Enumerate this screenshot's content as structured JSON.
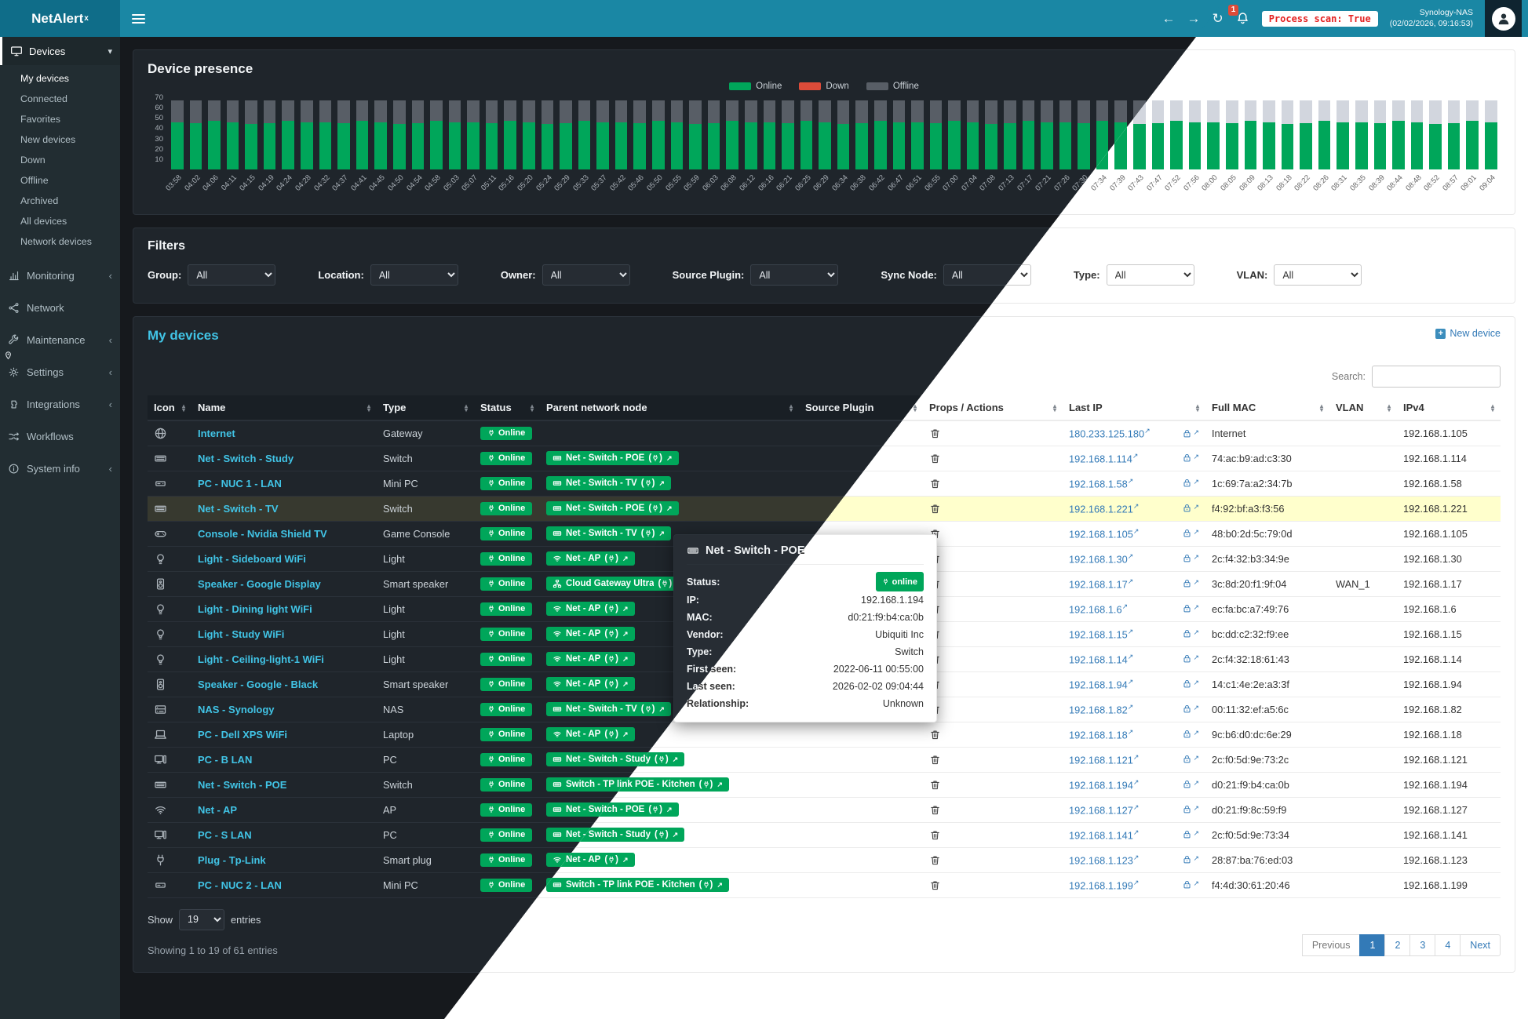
{
  "navbar": {
    "brand": "NetAlert",
    "brand_sup": "x",
    "back_icon": "←",
    "forward_icon": "→",
    "refresh_icon": "↻",
    "badge": "1",
    "process_scan": "Process scan: True",
    "host": "Synology-NAS",
    "time": "(02/02/2026, 09:16:53)"
  },
  "sidebar": {
    "devices_menu": {
      "icon": "display",
      "label": "Devices",
      "chevron": "▾",
      "children": [
        {
          "label": "My devices",
          "state": "active"
        },
        {
          "label": "Connected"
        },
        {
          "label": "Favorites"
        },
        {
          "label": "New devices"
        },
        {
          "label": "Down"
        },
        {
          "label": "Offline"
        },
        {
          "label": "Archived"
        },
        {
          "label": "All devices"
        },
        {
          "label": "Network devices"
        }
      ]
    },
    "sections": [
      {
        "icon": "chart",
        "label": "Monitoring",
        "chevron": "‹"
      },
      {
        "icon": "share",
        "label": "Network",
        "chevron": ""
      },
      {
        "icon": "wrench",
        "label": "Maintenance",
        "chevron": "‹"
      },
      {
        "icon": "gear",
        "label": "Settings",
        "chevron": "‹"
      },
      {
        "icon": "puzzle",
        "label": "Integrations",
        "chevron": "‹"
      },
      {
        "icon": "shuffle",
        "label": "Workflows",
        "chevron": ""
      },
      {
        "icon": "info",
        "label": "System info",
        "chevron": "‹"
      }
    ]
  },
  "chart_data": {
    "type": "bar",
    "stacked": true,
    "title": "Device presence",
    "legend": [
      {
        "label": "Online",
        "state": "online",
        "color": "#00a65a"
      },
      {
        "label": "Down",
        "state": "down",
        "color": "#dd4b39"
      },
      {
        "label": "Offline",
        "state": "offline",
        "color": "#d2d6de"
      }
    ],
    "ylim": [
      0,
      70
    ],
    "yticks": [
      70,
      60,
      50,
      40,
      30,
      20,
      10
    ],
    "x": [
      "03:58",
      "04:02",
      "04:06",
      "04:11",
      "04:15",
      "04:19",
      "04:24",
      "04:28",
      "04:32",
      "04:37",
      "04:41",
      "04:45",
      "04:50",
      "04:54",
      "04:58",
      "05:03",
      "05:07",
      "05:11",
      "05:16",
      "05:20",
      "05:24",
      "05:29",
      "05:33",
      "05:37",
      "05:42",
      "05:46",
      "05:50",
      "05:55",
      "05:59",
      "06:03",
      "06:08",
      "06:12",
      "06:16",
      "06:21",
      "06:25",
      "06:29",
      "06:34",
      "06:38",
      "06:42",
      "06:47",
      "06:51",
      "06:55",
      "07:00",
      "07:04",
      "07:08",
      "07:13",
      "07:17",
      "07:21",
      "07:26",
      "07:30",
      "07:34",
      "07:39",
      "07:43",
      "07:47",
      "07:52",
      "07:56",
      "08:00",
      "08:05",
      "08:09",
      "08:13",
      "08:18",
      "08:22",
      "08:26",
      "08:31",
      "08:35",
      "08:39",
      "08:44",
      "08:48",
      "08:52",
      "08:57",
      "09:01",
      "09:04"
    ],
    "series": [
      {
        "name": "Online",
        "color": "#00a65a",
        "values": [
          46,
          45,
          47,
          46,
          44,
          45,
          47,
          46,
          46,
          45,
          47,
          46,
          44,
          45,
          47,
          46,
          46,
          45,
          47,
          46,
          44,
          45,
          47,
          46,
          46,
          45,
          47,
          46,
          44,
          45,
          47,
          46,
          46,
          45,
          47,
          46,
          44,
          45,
          47,
          46,
          46,
          45,
          47,
          46,
          44,
          45,
          47,
          46,
          46,
          45,
          47,
          46,
          44,
          45,
          47,
          46,
          46,
          45,
          47,
          46,
          44,
          45,
          47,
          46,
          46,
          45,
          47,
          46,
          44,
          45,
          47,
          46
        ]
      },
      {
        "name": "Down",
        "color": "#dd4b39",
        "values": [
          0,
          0,
          0,
          0,
          0,
          0,
          0,
          0,
          0,
          0,
          0,
          0,
          0,
          0,
          0,
          0,
          0,
          0,
          0,
          0,
          0,
          0,
          0,
          0,
          0,
          0,
          0,
          0,
          0,
          0,
          0,
          0,
          0,
          0,
          0,
          0,
          0,
          0,
          0,
          0,
          0,
          0,
          0,
          0,
          0,
          0,
          0,
          0,
          0,
          0,
          0,
          0,
          0,
          0,
          0,
          0,
          0,
          0,
          0,
          0,
          0,
          0,
          0,
          0,
          0,
          0,
          0,
          0,
          0,
          0,
          0,
          0
        ]
      },
      {
        "name": "Offline",
        "color": "#d2d6de",
        "values": [
          21,
          22,
          20,
          21,
          23,
          22,
          20,
          21,
          21,
          22,
          20,
          21,
          23,
          22,
          20,
          21,
          21,
          22,
          20,
          21,
          23,
          22,
          20,
          21,
          21,
          22,
          20,
          21,
          23,
          22,
          20,
          21,
          21,
          22,
          20,
          21,
          23,
          22,
          20,
          21,
          21,
          22,
          20,
          21,
          23,
          22,
          20,
          21,
          21,
          22,
          20,
          21,
          23,
          22,
          20,
          21,
          21,
          22,
          20,
          21,
          23,
          22,
          20,
          21,
          21,
          22,
          20,
          21,
          23,
          22,
          20,
          21
        ]
      }
    ]
  },
  "filters": {
    "title": "Filters",
    "fields": [
      {
        "label": "Group:",
        "value": "All"
      },
      {
        "label": "Location:",
        "value": "All"
      },
      {
        "label": "Owner:",
        "value": "All"
      },
      {
        "label": "Source Plugin:",
        "value": "All"
      },
      {
        "label": "Sync Node:",
        "value": "All"
      },
      {
        "label": "Type:",
        "value": "All"
      },
      {
        "label": "VLAN:",
        "value": "All"
      }
    ]
  },
  "devices_panel": {
    "title": "My devices",
    "new_device": "New device",
    "plus_glyph": "+",
    "search_label": "Search:",
    "show_label": "Show",
    "show_value": "19",
    "entries_label": "entries",
    "summary": "Showing 1 to 19 of 61 entries"
  },
  "table": {
    "columns": [
      "Icon",
      "Name",
      "Type",
      "Status",
      "Parent network node",
      "Source Plugin",
      "Props / Actions",
      "Last IP",
      "Full MAC",
      "VLAN",
      "IPv4"
    ],
    "rows": [
      {
        "icon": "globe",
        "name": "Internet",
        "type": "Gateway",
        "status": "Online",
        "parent": null,
        "source_plugin": "",
        "last_ip": "180.233.125.180",
        "mac": "Internet",
        "vlan": "",
        "ipv4": "192.168.1.105"
      },
      {
        "icon": "switch",
        "name": "Net - Switch - Study",
        "type": "Switch",
        "status": "Online",
        "parent": {
          "icon": "switch",
          "label": "Net - Switch - POE"
        },
        "source_plugin": "",
        "last_ip": "192.168.1.114",
        "mac": "74:ac:b9:ad:c3:30",
        "vlan": "",
        "ipv4": "192.168.1.114"
      },
      {
        "icon": "minipc",
        "name": "PC - NUC 1 - LAN",
        "type": "Mini PC",
        "status": "Online",
        "parent": {
          "icon": "switch",
          "label": "Net - Switch - TV"
        },
        "source_plugin": "",
        "last_ip": "192.168.1.58",
        "mac": "1c:69:7a:a2:34:7b",
        "vlan": "",
        "ipv4": "192.168.1.58"
      },
      {
        "icon": "switch",
        "name": "Net - Switch - TV",
        "type": "Switch",
        "status": "Online",
        "parent": {
          "icon": "switch",
          "label": "Net - Switch - POE"
        },
        "source_plugin": "",
        "last_ip": "192.168.1.221",
        "mac": "f4:92:bf:a3:f3:56",
        "vlan": "",
        "ipv4": "192.168.1.221",
        "state": "selected"
      },
      {
        "icon": "console",
        "name": "Console - Nvidia Shield TV",
        "type": "Game Console",
        "status": "Online",
        "parent": {
          "icon": "switch",
          "label": "Net - Switch - TV"
        },
        "source_plugin": "",
        "last_ip": "192.168.1.105",
        "mac": "48:b0:2d:5c:79:0d",
        "vlan": "",
        "ipv4": "192.168.1.105"
      },
      {
        "icon": "bulb",
        "name": "Light - Sideboard WiFi",
        "type": "Light",
        "status": "Online",
        "parent": {
          "icon": "wifi",
          "label": "Net - AP"
        },
        "source_plugin": "",
        "last_ip": "192.168.1.30",
        "mac": "2c:f4:32:b3:34:9e",
        "vlan": "",
        "ipv4": "192.168.1.30"
      },
      {
        "icon": "speaker",
        "name": "Speaker - Google Display",
        "type": "Smart speaker",
        "status": "Online",
        "parent": {
          "icon": "sitemap",
          "label": "Cloud Gateway Ultra"
        },
        "source_plugin": "",
        "last_ip": "192.168.1.17",
        "mac": "3c:8d:20:f1:9f:04",
        "vlan": "WAN_1",
        "ipv4": "192.168.1.17"
      },
      {
        "icon": "bulb",
        "name": "Light - Dining light WiFi",
        "type": "Light",
        "status": "Online",
        "parent": {
          "icon": "wifi",
          "label": "Net - AP"
        },
        "source_plugin": "",
        "last_ip": "192.168.1.6",
        "mac": "ec:fa:bc:a7:49:76",
        "vlan": "",
        "ipv4": "192.168.1.6"
      },
      {
        "icon": "bulb",
        "name": "Light - Study WiFi",
        "type": "Light",
        "status": "Online",
        "parent": {
          "icon": "wifi",
          "label": "Net - AP"
        },
        "source_plugin": "",
        "last_ip": "192.168.1.15",
        "mac": "bc:dd:c2:32:f9:ee",
        "vlan": "",
        "ipv4": "192.168.1.15"
      },
      {
        "icon": "bulb",
        "name": "Light - Ceiling-light-1 WiFi",
        "type": "Light",
        "status": "Online",
        "parent": {
          "icon": "wifi",
          "label": "Net - AP"
        },
        "source_plugin": "",
        "last_ip": "192.168.1.14",
        "mac": "2c:f4:32:18:61:43",
        "vlan": "",
        "ipv4": "192.168.1.14"
      },
      {
        "icon": "speaker",
        "name": "Speaker - Google - Black",
        "type": "Smart speaker",
        "status": "Online",
        "parent": {
          "icon": "wifi",
          "label": "Net - AP"
        },
        "source_plugin": "",
        "last_ip": "192.168.1.94",
        "mac": "14:c1:4e:2e:a3:3f",
        "vlan": "",
        "ipv4": "192.168.1.94"
      },
      {
        "icon": "nas",
        "name": "NAS - Synology",
        "type": "NAS",
        "status": "Online",
        "parent": {
          "icon": "switch",
          "label": "Net - Switch - TV"
        },
        "source_plugin": "",
        "last_ip": "192.168.1.82",
        "mac": "00:11:32:ef:a5:6c",
        "vlan": "",
        "ipv4": "192.168.1.82"
      },
      {
        "icon": "laptop",
        "name": "PC - Dell XPS WiFi",
        "type": "Laptop",
        "status": "Online",
        "parent": {
          "icon": "wifi",
          "label": "Net - AP"
        },
        "source_plugin": "",
        "last_ip": "192.168.1.18",
        "mac": "9c:b6:d0:dc:6e:29",
        "vlan": "",
        "ipv4": "192.168.1.18"
      },
      {
        "icon": "desktop",
        "name": "PC - B LAN",
        "type": "PC",
        "status": "Online",
        "parent": {
          "icon": "switch",
          "label": "Net - Switch - Study"
        },
        "source_plugin": "",
        "last_ip": "192.168.1.121",
        "mac": "2c:f0:5d:9e:73:2c",
        "vlan": "",
        "ipv4": "192.168.1.121"
      },
      {
        "icon": "switch",
        "name": "Net - Switch - POE",
        "type": "Switch",
        "status": "Online",
        "parent": {
          "icon": "switch",
          "label": "Switch - TP link POE - Kitchen"
        },
        "source_plugin": "",
        "last_ip": "192.168.1.194",
        "mac": "d0:21:f9:b4:ca:0b",
        "vlan": "",
        "ipv4": "192.168.1.194"
      },
      {
        "icon": "wifi",
        "name": "Net - AP",
        "type": "AP",
        "status": "Online",
        "parent": {
          "icon": "switch",
          "label": "Net - Switch - POE"
        },
        "source_plugin": "",
        "last_ip": "192.168.1.127",
        "mac": "d0:21:f9:8c:59:f9",
        "vlan": "",
        "ipv4": "192.168.1.127"
      },
      {
        "icon": "desktop",
        "name": "PC - S LAN",
        "type": "PC",
        "status": "Online",
        "parent": {
          "icon": "switch",
          "label": "Net - Switch - Study"
        },
        "source_plugin": "",
        "last_ip": "192.168.1.141",
        "mac": "2c:f0:5d:9e:73:34",
        "vlan": "",
        "ipv4": "192.168.1.141"
      },
      {
        "icon": "plug",
        "name": "Plug - Tp-Link",
        "type": "Smart plug",
        "status": "Online",
        "parent": {
          "icon": "wifi",
          "label": "Net - AP"
        },
        "source_plugin": "",
        "last_ip": "192.168.1.123",
        "mac": "28:87:ba:76:ed:03",
        "vlan": "",
        "ipv4": "192.168.1.123"
      },
      {
        "icon": "minipc",
        "name": "PC - NUC 2 - LAN",
        "type": "Mini PC",
        "status": "Online",
        "parent": {
          "icon": "switch",
          "label": "Switch - TP link POE - Kitchen"
        },
        "source_plugin": "",
        "last_ip": "192.168.1.199",
        "mac": "f4:4d:30:61:20:46",
        "vlan": "",
        "ipv4": "192.168.1.199"
      }
    ]
  },
  "pagination": {
    "items": [
      {
        "label": "Previous",
        "state": "disabled"
      },
      {
        "label": "1",
        "state": "active"
      },
      {
        "label": "2"
      },
      {
        "label": "3"
      },
      {
        "label": "4"
      },
      {
        "label": "Next"
      }
    ]
  },
  "popup": {
    "icon": "switch",
    "title": "Net - Switch - POE",
    "status_label": "Status:",
    "status": "online",
    "fields": [
      {
        "label": "IP:",
        "value": "192.168.1.194"
      },
      {
        "label": "MAC:",
        "value": "d0:21:f9:b4:ca:0b"
      },
      {
        "label": "Vendor:",
        "value": "Ubiquiti Inc"
      },
      {
        "label": "Type:",
        "value": "Switch"
      },
      {
        "label": "First seen:",
        "value": "2022-06-11 00:55:00"
      },
      {
        "label": "Last seen:",
        "value": "2026-02-02 09:04:44"
      },
      {
        "label": "Relationship:",
        "value": "Unknown"
      }
    ]
  }
}
